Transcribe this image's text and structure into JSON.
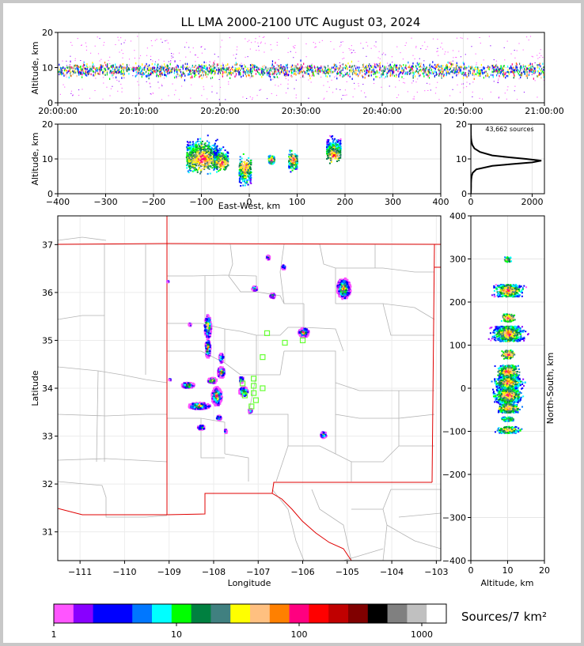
{
  "title": "LL LMA 2000-2100 UTC August 03, 2024",
  "chart_data": [
    {
      "type": "scatter",
      "panel": "altitude-time",
      "ylabel": "Altitude, km",
      "ylim": [
        0,
        20
      ],
      "yticks": [
        "0",
        "10",
        "20"
      ],
      "xticks": [
        "20:00:00",
        "20:10:00",
        "20:20:00",
        "20:30:00",
        "20:40:00",
        "20:50:00",
        "21:00:00"
      ],
      "xlim_minutes": [
        0,
        60
      ],
      "altitude_band_km": {
        "core_low": 6,
        "core_high": 13,
        "outlier_low": 1,
        "outlier_high": 19
      }
    },
    {
      "type": "heatmap",
      "panel": "altitude-eastwest",
      "xlabel": "East-West, km",
      "ylabel": "Altitude, km",
      "xlim": [
        -400,
        400
      ],
      "ylim": [
        0,
        20
      ],
      "xticks": [
        "−400",
        "−300",
        "−200",
        "−100",
        "0",
        "100",
        "200",
        "300",
        "400"
      ],
      "yticks": [
        "0",
        "10",
        "20"
      ],
      "clusters": [
        {
          "x": -100,
          "width": 65,
          "z_low": 3,
          "z_high": 19,
          "peak": 10
        },
        {
          "x": -60,
          "width": 30,
          "z_low": 5,
          "z_high": 15,
          "peak": 9
        },
        {
          "x": -10,
          "width": 25,
          "z_low": 0,
          "z_high": 13,
          "peak": 8
        },
        {
          "x": 45,
          "width": 12,
          "z_low": 8,
          "z_high": 12,
          "peak": 10
        },
        {
          "x": 90,
          "width": 18,
          "z_low": 5,
          "z_high": 14,
          "peak": 10
        },
        {
          "x": 175,
          "width": 30,
          "z_low": 7,
          "z_high": 19,
          "peak": 11
        }
      ]
    },
    {
      "type": "line",
      "panel": "altitude-histogram",
      "annotation": "43,662 sources",
      "xlim": [
        0,
        2400
      ],
      "ylim": [
        0,
        20
      ],
      "xticks": [
        "0",
        "2000"
      ],
      "yticks": [
        "0",
        "10",
        "20"
      ],
      "profile": [
        [
          0,
          0
        ],
        [
          1,
          5
        ],
        [
          2,
          7
        ],
        [
          3,
          8
        ],
        [
          4,
          12
        ],
        [
          5,
          25
        ],
        [
          6,
          60
        ],
        [
          7,
          180
        ],
        [
          8,
          700
        ],
        [
          8.5,
          1300
        ],
        [
          9,
          2000
        ],
        [
          9.5,
          2300
        ],
        [
          10,
          1800
        ],
        [
          10.5,
          1200
        ],
        [
          11,
          700
        ],
        [
          12,
          300
        ],
        [
          13,
          120
        ],
        [
          14,
          50
        ],
        [
          15,
          20
        ],
        [
          16,
          8
        ],
        [
          17,
          3
        ],
        [
          18,
          1
        ],
        [
          20,
          0
        ]
      ]
    },
    {
      "type": "map",
      "panel": "plan-view",
      "xlabel": "Longitude",
      "ylabel": "Latitude",
      "xlim": [
        -111.5,
        -102.9
      ],
      "ylim": [
        30.4,
        37.6
      ],
      "xticks": [
        "−111",
        "−110",
        "−109",
        "−108",
        "−107",
        "−106",
        "−105",
        "−104",
        "−103"
      ],
      "yticks": [
        "31",
        "32",
        "33",
        "34",
        "35",
        "36",
        "37"
      ],
      "stations": [
        [
          -106.8,
          35.15
        ],
        [
          -106.4,
          34.95
        ],
        [
          -106.0,
          35.0
        ],
        [
          -106.9,
          34.65
        ],
        [
          -107.1,
          34.2
        ],
        [
          -107.35,
          34.1
        ],
        [
          -107.1,
          34.05
        ],
        [
          -106.9,
          34.0
        ],
        [
          -107.1,
          33.9
        ],
        [
          -107.3,
          33.85
        ],
        [
          -107.05,
          33.75
        ],
        [
          -107.15,
          33.62
        ]
      ],
      "cells": [
        {
          "lon": -105.1,
          "lat": 36.1,
          "rx": 0.16,
          "ry": 0.22,
          "n": 40
        },
        {
          "lon": -106.0,
          "lat": 35.18,
          "rx": 0.12,
          "ry": 0.1,
          "n": 25
        },
        {
          "lon": -106.7,
          "lat": 35.95,
          "rx": 0.06,
          "ry": 0.05,
          "n": 8
        },
        {
          "lon": -106.45,
          "lat": 36.55,
          "rx": 0.04,
          "ry": 0.05,
          "n": 6
        },
        {
          "lon": -107.1,
          "lat": 36.1,
          "rx": 0.06,
          "ry": 0.05,
          "n": 6
        },
        {
          "lon": -106.8,
          "lat": 36.75,
          "rx": 0.04,
          "ry": 0.05,
          "n": 6
        },
        {
          "lon": -108.15,
          "lat": 35.3,
          "rx": 0.08,
          "ry": 0.25,
          "n": 25
        },
        {
          "lon": -108.15,
          "lat": 34.85,
          "rx": 0.06,
          "ry": 0.2,
          "n": 15
        },
        {
          "lon": -107.85,
          "lat": 34.65,
          "rx": 0.05,
          "ry": 0.1,
          "n": 8
        },
        {
          "lon": -107.85,
          "lat": 34.35,
          "rx": 0.08,
          "ry": 0.12,
          "n": 18
        },
        {
          "lon": -108.05,
          "lat": 34.18,
          "rx": 0.1,
          "ry": 0.06,
          "n": 15
        },
        {
          "lon": -108.6,
          "lat": 34.08,
          "rx": 0.15,
          "ry": 0.06,
          "n": 18
        },
        {
          "lon": -107.95,
          "lat": 33.85,
          "rx": 0.12,
          "ry": 0.2,
          "n": 30
        },
        {
          "lon": -108.35,
          "lat": 33.65,
          "rx": 0.25,
          "ry": 0.07,
          "n": 28
        },
        {
          "lon": -107.35,
          "lat": 33.95,
          "rx": 0.1,
          "ry": 0.1,
          "n": 15
        },
        {
          "lon": -107.4,
          "lat": 34.2,
          "rx": 0.05,
          "ry": 0.07,
          "n": 6
        },
        {
          "lon": -107.2,
          "lat": 33.55,
          "rx": 0.04,
          "ry": 0.05,
          "n": 5
        },
        {
          "lon": -107.9,
          "lat": 33.4,
          "rx": 0.06,
          "ry": 0.05,
          "n": 6
        },
        {
          "lon": -108.3,
          "lat": 33.2,
          "rx": 0.08,
          "ry": 0.05,
          "n": 8
        },
        {
          "lon": -107.75,
          "lat": 33.12,
          "rx": 0.03,
          "ry": 0.04,
          "n": 4
        },
        {
          "lon": -105.55,
          "lat": 33.05,
          "rx": 0.07,
          "ry": 0.07,
          "n": 8
        },
        {
          "lon": -108.55,
          "lat": 35.35,
          "rx": 0.03,
          "ry": 0.03,
          "n": 3
        },
        {
          "lon": -109.05,
          "lat": 36.25,
          "rx": 0.02,
          "ry": 0.02,
          "n": 2
        },
        {
          "lon": -109.0,
          "lat": 34.2,
          "rx": 0.02,
          "ry": 0.02,
          "n": 2
        }
      ]
    },
    {
      "type": "heatmap",
      "panel": "northsouth-altitude",
      "xlabel": "Altitude, km",
      "ylabel": "North-South, km",
      "xlim": [
        0,
        20
      ],
      "ylim": [
        -400,
        400
      ],
      "xticks": [
        "0",
        "10",
        "20"
      ],
      "yticks": [
        "−400",
        "−300",
        "−200",
        "−100",
        "0",
        "100",
        "200",
        "300",
        "400"
      ],
      "bands": [
        {
          "y": 300,
          "h": 12,
          "z_low": 8,
          "z_high": 12
        },
        {
          "y": 228,
          "h": 28,
          "z_low": 5,
          "z_high": 19
        },
        {
          "y": 165,
          "h": 18,
          "z_low": 7,
          "z_high": 13
        },
        {
          "y": 128,
          "h": 35,
          "z_low": 2,
          "z_high": 18
        },
        {
          "y": 80,
          "h": 20,
          "z_low": 7,
          "z_high": 13
        },
        {
          "y": 40,
          "h": 30,
          "z_low": 4,
          "z_high": 14
        },
        {
          "y": 15,
          "h": 25,
          "z_low": 2,
          "z_high": 16
        },
        {
          "y": -15,
          "h": 35,
          "z_low": 1,
          "z_high": 15
        },
        {
          "y": -45,
          "h": 20,
          "z_low": 3,
          "z_high": 14
        },
        {
          "y": -70,
          "h": 10,
          "z_low": 5,
          "z_high": 12
        },
        {
          "y": -95,
          "h": 15,
          "z_low": 3,
          "z_high": 14
        }
      ]
    }
  ],
  "colorbar": {
    "label": "Sources/7 km²",
    "ticks": [
      "1",
      "10",
      "100",
      "1000"
    ],
    "colors": [
      "#ff55ff",
      "#8800ff",
      "#0000ff",
      "#0000ff",
      "#0077ff",
      "#00ffff",
      "#00ff00",
      "#008040",
      "#408080",
      "#ffff00",
      "#ffc080",
      "#ff8000",
      "#ff0080",
      "#ff0000",
      "#c00000",
      "#800000",
      "#000000",
      "#808080",
      "#c0c0c0",
      "#ffffff"
    ]
  }
}
